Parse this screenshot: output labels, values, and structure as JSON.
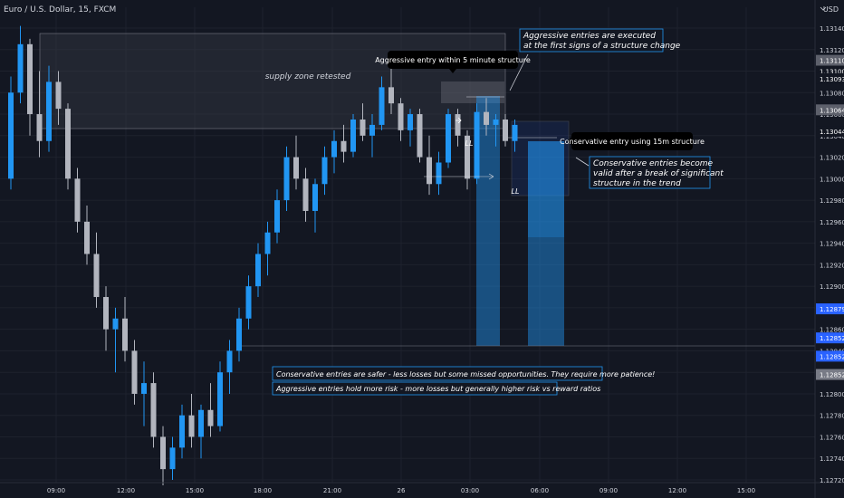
{
  "header": {
    "symbol_title": "Euro / U.S. Dollar, 15, FXCM",
    "currency": "USD"
  },
  "chart_data": {
    "type": "candlestick",
    "symbol": "Euro / U.S. Dollar, 15, FXCM",
    "ylim": [
      1.127,
      1.132
    ],
    "price_ticks": [
      "1.13140",
      "1.13120",
      "1.13100",
      "1.13080",
      "1.13060",
      "1.13040",
      "1.13020",
      "1.13000",
      "1.12980",
      "1.12960",
      "1.12940",
      "1.12920",
      "1.12900",
      "1.12880",
      "1.12860",
      "1.12840",
      "1.12820",
      "1.12800",
      "1.12780",
      "1.12760",
      "1.12740",
      "1.12720"
    ],
    "time_ticks": [
      "09:00",
      "12:00",
      "15:00",
      "18:00",
      "21:00",
      "26",
      "03:00",
      "06:00",
      "09:00",
      "12:00",
      "15:00"
    ],
    "price_badges": [
      {
        "label": "1.13110",
        "price": 1.1311,
        "color": "#5d606b"
      },
      {
        "label": "1.13100",
        "price": 1.131,
        "color": "#131722"
      },
      {
        "label": "1.13093",
        "price": 1.13093,
        "color": "#131722"
      },
      {
        "label": "1.13064",
        "price": 1.13064,
        "color": "#5d606b"
      },
      {
        "label": "1.13044",
        "price": 1.13044,
        "color": "#131722"
      },
      {
        "label": "1.12879",
        "price": 1.12879,
        "color": "#2962ff"
      },
      {
        "label": "1.12852",
        "price": 1.12852,
        "color": "#2962ff"
      },
      {
        "label": "1.12852",
        "price": 1.12835,
        "color": "#2962ff"
      },
      {
        "label": "1.12852",
        "price": 1.12818,
        "color": "#787b86"
      }
    ],
    "candles": [
      [
        1.13,
        1.13095,
        1.1299,
        1.1308
      ],
      [
        1.1308,
        1.13142,
        1.1307,
        1.13125
      ],
      [
        1.13125,
        1.1313,
        1.1304,
        1.1306
      ],
      [
        1.1306,
        1.131,
        1.1302,
        1.13035
      ],
      [
        1.13035,
        1.13105,
        1.13025,
        1.1309
      ],
      [
        1.1309,
        1.131,
        1.1305,
        1.13065
      ],
      [
        1.13065,
        1.1307,
        1.1299,
        1.13
      ],
      [
        1.13,
        1.1301,
        1.1295,
        1.1296
      ],
      [
        1.1296,
        1.12975,
        1.1292,
        1.1293
      ],
      [
        1.1293,
        1.1295,
        1.1288,
        1.1289
      ],
      [
        1.1289,
        1.129,
        1.1284,
        1.1286
      ],
      [
        1.1286,
        1.1288,
        1.1282,
        1.1287
      ],
      [
        1.1287,
        1.1289,
        1.1283,
        1.1284
      ],
      [
        1.1284,
        1.1285,
        1.1279,
        1.128
      ],
      [
        1.128,
        1.1283,
        1.1277,
        1.1281
      ],
      [
        1.1281,
        1.1282,
        1.1275,
        1.1276
      ],
      [
        1.1276,
        1.1277,
        1.12715,
        1.1273
      ],
      [
        1.1273,
        1.1276,
        1.1272,
        1.1275
      ],
      [
        1.1275,
        1.1279,
        1.1274,
        1.1278
      ],
      [
        1.1278,
        1.128,
        1.1275,
        1.1276
      ],
      [
        1.1276,
        1.1279,
        1.1274,
        1.12785
      ],
      [
        1.12785,
        1.1281,
        1.1276,
        1.1277
      ],
      [
        1.1277,
        1.1283,
        1.12765,
        1.1282
      ],
      [
        1.1282,
        1.1285,
        1.128,
        1.1284
      ],
      [
        1.1284,
        1.1288,
        1.1283,
        1.1287
      ],
      [
        1.1287,
        1.1291,
        1.1286,
        1.129
      ],
      [
        1.129,
        1.1294,
        1.1289,
        1.1293
      ],
      [
        1.1293,
        1.1296,
        1.1291,
        1.1295
      ],
      [
        1.1295,
        1.1299,
        1.1294,
        1.1298
      ],
      [
        1.1298,
        1.1303,
        1.1297,
        1.1302
      ],
      [
        1.1302,
        1.1304,
        1.1299,
        1.13
      ],
      [
        1.13,
        1.1301,
        1.1296,
        1.1297
      ],
      [
        1.1297,
        1.13,
        1.1295,
        1.12995
      ],
      [
        1.12995,
        1.1303,
        1.12985,
        1.1302
      ],
      [
        1.1302,
        1.13045,
        1.13005,
        1.13035
      ],
      [
        1.13035,
        1.1305,
        1.13015,
        1.13025
      ],
      [
        1.13025,
        1.1306,
        1.1302,
        1.13055
      ],
      [
        1.13055,
        1.1307,
        1.13035,
        1.1304
      ],
      [
        1.1304,
        1.1306,
        1.1302,
        1.1305
      ],
      [
        1.1305,
        1.13095,
        1.13045,
        1.13085
      ],
      [
        1.13085,
        1.1311,
        1.1306,
        1.1307
      ],
      [
        1.1307,
        1.13075,
        1.13035,
        1.13045
      ],
      [
        1.13045,
        1.13065,
        1.1303,
        1.1306
      ],
      [
        1.1306,
        1.13065,
        1.13015,
        1.1302
      ],
      [
        1.1302,
        1.1304,
        1.12985,
        1.12995
      ],
      [
        1.12995,
        1.13025,
        1.12985,
        1.13015
      ],
      [
        1.13015,
        1.13065,
        1.1301,
        1.1306
      ],
      [
        1.1306,
        1.13065,
        1.1303,
        1.1304
      ],
      [
        1.1304,
        1.13045,
        1.1299,
        1.13
      ],
      [
        1.13,
        1.1307,
        1.12995,
        1.13062
      ],
      [
        1.13062,
        1.13075,
        1.1304,
        1.1305
      ],
      [
        1.1305,
        1.1306,
        1.1303,
        1.13055
      ],
      [
        1.13055,
        1.1306,
        1.1303,
        1.13035
      ],
      [
        1.13035,
        1.13055,
        1.13025,
        1.1305
      ]
    ],
    "series_colors": {
      "up": "#2196f3",
      "down": "#b2b5be"
    },
    "annotations": {
      "supply_label": "supply zone retested",
      "aggressive_title_line1": "Aggressive entries are executed",
      "aggressive_title_line2": "at the first signs of a structure change",
      "aggressive_tooltip": "Aggressive entry within 5 minute structure",
      "conservative_tooltip": "Conservative entry using 15m structure",
      "conservative_line1": "Conservative entries become",
      "conservative_line2": "valid after a break of significant",
      "conservative_line3": "structure in the trend",
      "ll_1": "LL",
      "ll_2": "LL",
      "note_conservative": "Conservative entries are safer - less losses but some missed opportunities. They require more patience!",
      "note_aggressive": "Aggressive entries hold more risk - more losses but generally  higher risk vs reward ratios"
    }
  }
}
